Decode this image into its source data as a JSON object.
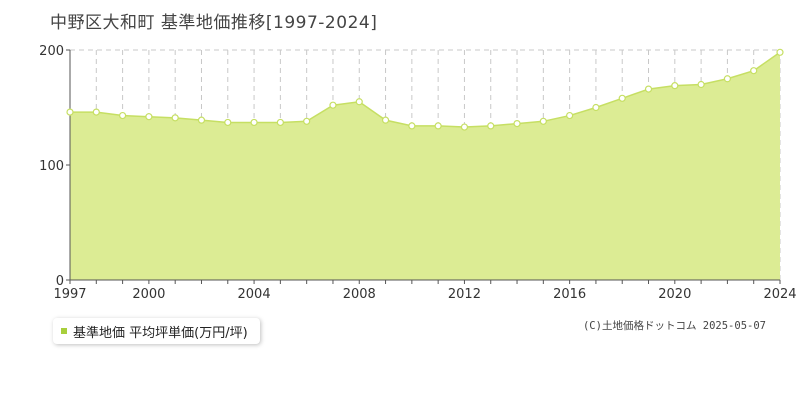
{
  "chart_data": {
    "type": "area",
    "title": "中野区大和町 基準地価推移[1997-2024]",
    "x": [
      1997,
      1998,
      1999,
      2000,
      2001,
      2002,
      2003,
      2004,
      2005,
      2006,
      2007,
      2008,
      2009,
      2010,
      2011,
      2012,
      2013,
      2014,
      2015,
      2016,
      2017,
      2018,
      2019,
      2020,
      2021,
      2022,
      2023,
      2024
    ],
    "series": [
      {
        "name": "基準地価 平均坪単価(万円/坪)",
        "values": [
          146,
          146,
          143,
          142,
          141,
          139,
          137,
          137,
          137,
          138,
          152,
          155,
          139,
          134,
          134,
          133,
          134,
          136,
          138,
          143,
          150,
          158,
          166,
          169,
          170,
          175,
          182,
          198
        ]
      }
    ],
    "xticks": [
      "1997",
      "2000",
      "2004",
      "2008",
      "2012",
      "2016",
      "2020",
      "2024"
    ],
    "yticks": [
      "0",
      "100",
      "200"
    ],
    "xlim": [
      1997,
      2024
    ],
    "ylim": [
      0,
      200
    ],
    "grid": true,
    "legend_position": "bottom-left",
    "colors": {
      "fill": "#dcec94",
      "line": "#c6df63",
      "grid": "#c8c8c8",
      "marker_face": "#ffffff"
    }
  },
  "legend": {
    "label": "基準地価 平均坪単価(万円/坪)",
    "swatch_color": "#a8cf3c"
  },
  "credit": "(C)土地価格ドットコム 2025-05-07"
}
